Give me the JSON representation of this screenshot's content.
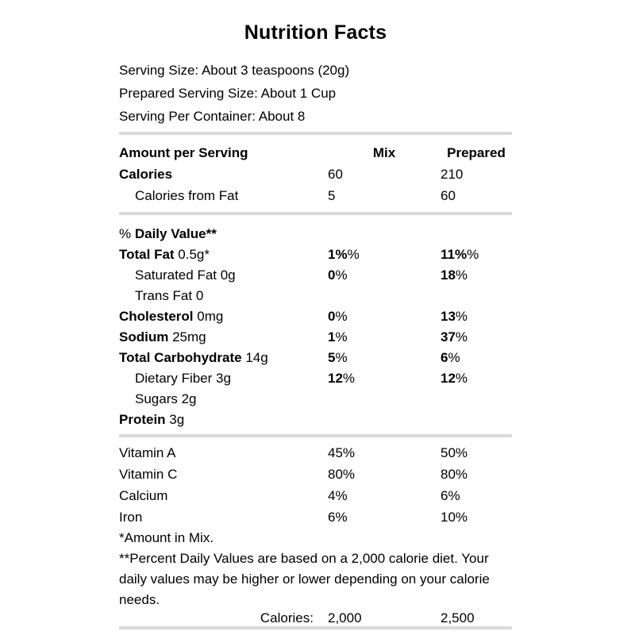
{
  "title": "Nutrition Facts",
  "serving_info": {
    "serving_size": "Serving Size: About 3 teaspoons (20g)",
    "prepared_serving_size": "Prepared Serving Size: About 1 Cup",
    "servings_per_container": "Serving Per Container: About 8"
  },
  "columns": {
    "mix": "Mix",
    "prepared": "Prepared"
  },
  "amount_section": {
    "header": "Amount per Serving",
    "rows": [
      {
        "bold": "Calories",
        "mix": "60",
        "prepared": "210"
      },
      {
        "plain": "Calories from Fat",
        "mix": "5",
        "prepared": "60"
      }
    ]
  },
  "daily_value_section": {
    "header_pre": "% ",
    "header_bold": "Daily Value**",
    "rows": [
      {
        "bold": "Total Fat",
        "rest": " 0.5g*",
        "mix_bold": "1%",
        "mix_plain": "%",
        "prep_bold": "11%",
        "prep_plain": "%"
      },
      {
        "plain": "Saturated Fat 0g",
        "mix_bold": "0",
        "mix_plain": "%",
        "prep_bold": "18",
        "prep_plain": "%"
      },
      {
        "plain": "Trans Fat 0"
      },
      {
        "bold": "Cholesterol",
        "rest": " 0mg",
        "mix_bold": "0",
        "mix_plain": "%",
        "prep_bold": "13",
        "prep_plain": "%"
      },
      {
        "bold": "Sodium",
        "rest": " 25mg",
        "mix_bold": "1",
        "mix_plain": "%",
        "prep_bold": "37",
        "prep_plain": "%"
      },
      {
        "bold": "Total Carbohydrate",
        "rest": " 14g",
        "mix_bold": "5",
        "mix_plain": "%",
        "prep_bold": "6",
        "prep_plain": "%"
      },
      {
        "plain": "Dietary Fiber 3g",
        "mix_bold": "12",
        "mix_plain": "%",
        "prep_bold": "12",
        "prep_plain": "%"
      },
      {
        "plain": "Sugars 2g"
      },
      {
        "bold": "Protein",
        "rest": " 3g"
      }
    ]
  },
  "vitamin_section": {
    "rows": [
      {
        "label": "Vitamin A",
        "mix": "45%",
        "prepared": "50%"
      },
      {
        "label": "Vitamin C",
        "mix": "80%",
        "prepared": "80%"
      },
      {
        "label": "Calcium",
        "mix": "4%",
        "prepared": "6%"
      },
      {
        "label": "Iron",
        "mix": "6%",
        "prepared": "10%"
      }
    ]
  },
  "footnotes": {
    "amount_in_mix": "*Amount in Mix.",
    "percent_daily": "**Percent Daily Values are based on a 2,000 calorie diet. Your daily values may be higher or lower depending on your calorie needs."
  },
  "calorie_reference": {
    "label": "Calories:",
    "mix": "2,000",
    "prepared": "2,500"
  },
  "colors": {
    "text": "#000000",
    "divider": "#d9d9d9",
    "background": "#ffffff"
  }
}
